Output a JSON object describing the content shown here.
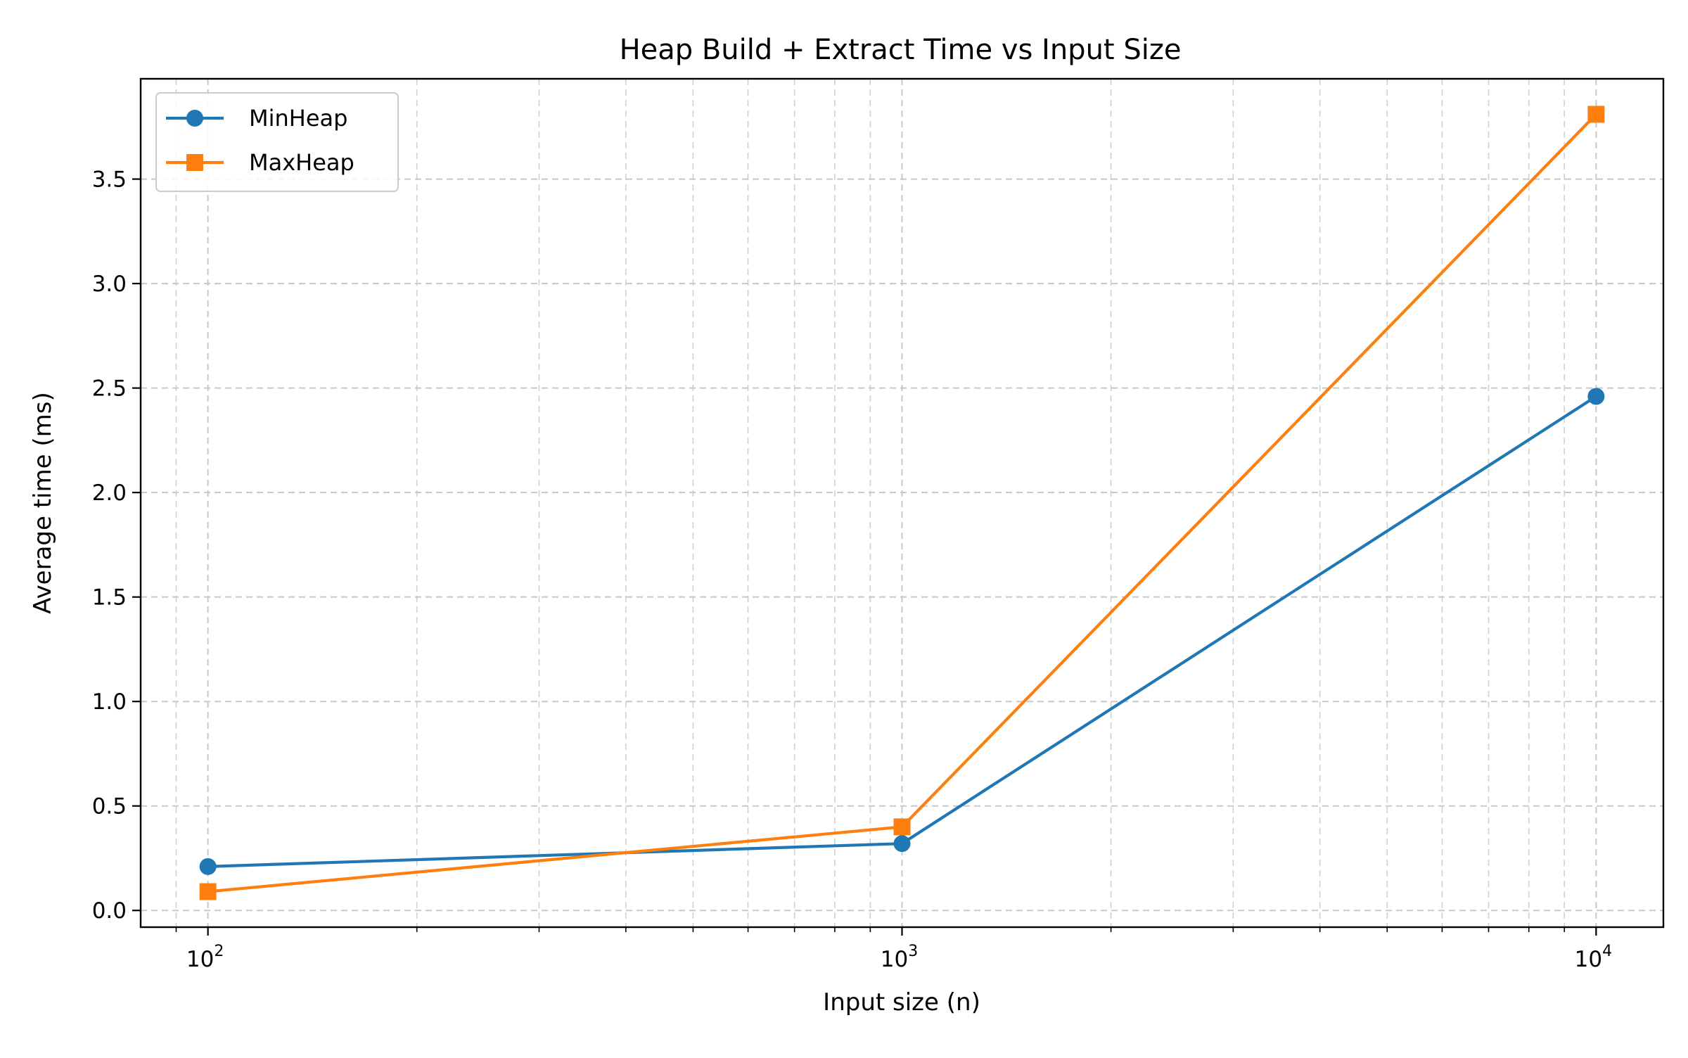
{
  "chart_data": {
    "type": "line",
    "title": "Heap Build + Extract Time vs Input Size",
    "xlabel": "Input size (n)",
    "ylabel": "Average time (ms)",
    "x_scale": "log",
    "x": [
      100,
      1000,
      10000
    ],
    "x_ticks": [
      {
        "value": 100,
        "base": "10",
        "exp": "2"
      },
      {
        "value": 1000,
        "base": "10",
        "exp": "3"
      },
      {
        "value": 10000,
        "base": "10",
        "exp": "4"
      }
    ],
    "xlim": [
      80,
      12500
    ],
    "ylim": [
      -0.08,
      3.98
    ],
    "y_ticks": [
      {
        "value": 0.0,
        "label": "0.0"
      },
      {
        "value": 0.5,
        "label": "0.5"
      },
      {
        "value": 1.0,
        "label": "1.0"
      },
      {
        "value": 1.5,
        "label": "1.5"
      },
      {
        "value": 2.0,
        "label": "2.0"
      },
      {
        "value": 2.5,
        "label": "2.5"
      },
      {
        "value": 3.0,
        "label": "3.0"
      },
      {
        "value": 3.5,
        "label": "3.5"
      }
    ],
    "grid": true,
    "grid_minor_x": true,
    "legend_position": "top-left",
    "series": [
      {
        "name": "MinHeap",
        "values": [
          0.21,
          0.32,
          2.46
        ],
        "color": "#1f77b4",
        "marker": "circle"
      },
      {
        "name": "MaxHeap",
        "values": [
          0.09,
          0.4,
          3.81
        ],
        "color": "#ff7f0e",
        "marker": "square"
      }
    ]
  }
}
